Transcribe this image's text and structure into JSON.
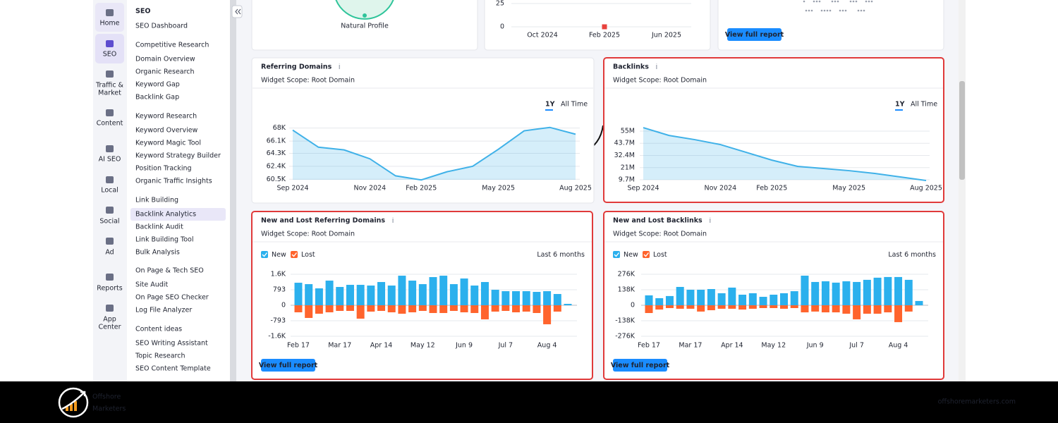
{
  "rail": [
    {
      "label": [
        "Home"
      ]
    },
    {
      "label": [
        "SEO"
      ]
    },
    {
      "label": [
        "Traffic &",
        "Market"
      ]
    },
    {
      "label": [
        "Content"
      ]
    },
    {
      "label": [
        "AI SEO"
      ]
    },
    {
      "label": [
        "Local"
      ]
    },
    {
      "label": [
        "Social"
      ]
    },
    {
      "label": [
        "Ad"
      ]
    },
    {
      "label": [
        "Reports"
      ]
    },
    {
      "label": [
        "App",
        "Center"
      ]
    }
  ],
  "sidebar": {
    "title": "SEO",
    "dashboard": "SEO Dashboard",
    "sections": [
      {
        "heading": "Competitive Research",
        "items": [
          "Domain Overview",
          "Organic Research",
          "Keyword Gap",
          "Backlink Gap"
        ]
      },
      {
        "heading": "Keyword Research",
        "items": [
          "Keyword Overview",
          "Keyword Magic Tool",
          "Keyword Strategy Builder",
          "Position Tracking",
          "Organic Traffic Insights"
        ]
      },
      {
        "heading": "Link Building",
        "items": [
          "Backlink Analytics",
          "Backlink Audit",
          "Link Building Tool",
          "Bulk Analysis"
        ]
      },
      {
        "heading": "On Page & Tech SEO",
        "items": [
          "Site Audit",
          "On Page SEO Checker",
          "Log File Analyzer"
        ]
      },
      {
        "heading": "Content ideas",
        "items": [
          "SEO Writing Assistant",
          "Topic Research",
          "SEO Content Template"
        ]
      }
    ]
  },
  "top_cards": {
    "natural_profile": "Natural Profile",
    "button": "View full report"
  },
  "annotation": "Backlinks",
  "chart_data": [
    {
      "type": "marker",
      "categories": [
        "Oct 2024",
        "Feb 2025",
        "Jun 2025"
      ],
      "values": [
        null,
        0,
        null
      ],
      "color": "#e8413c",
      "ylim": [
        0,
        25
      ],
      "yticks": [
        25,
        0
      ],
      "grid": true
    },
    {
      "type": "line",
      "title": "Referring Domains",
      "subtitle": "Widget Scope: Root Domain",
      "tabs": [
        "1Y",
        "All Time"
      ],
      "categories": [
        "Sep 2024",
        null,
        null,
        "Nov 2024",
        null,
        "Feb 2025",
        null,
        null,
        "May 2025",
        null,
        null,
        "Aug 2025"
      ],
      "values": [
        67700,
        65200,
        64800,
        63500,
        61000,
        60400,
        61600,
        62400,
        64900,
        67600,
        68100,
        67100
      ],
      "color": "#3fb1e8",
      "area": true,
      "ylim": [
        59700,
        69000
      ],
      "yticks": [
        {
          "value": 68000,
          "label": "68K"
        },
        {
          "value": 66100,
          "label": "66.1K"
        },
        {
          "value": 64300,
          "label": "64.3K"
        },
        {
          "value": 62400,
          "label": "62.4K"
        },
        {
          "value": 60500,
          "label": "60.5K"
        }
      ],
      "grid": true
    },
    {
      "type": "line",
      "title": "Backlinks",
      "subtitle": "Widget Scope: Root Domain",
      "tabs": [
        "1Y",
        "All Time"
      ],
      "categories": [
        "Sep 2024",
        null,
        null,
        "Nov 2024",
        null,
        "Feb 2025",
        null,
        null,
        "May 2025",
        null,
        null,
        "Aug 2025"
      ],
      "values": [
        58300000,
        51000000,
        47100000,
        42500000,
        35300000,
        28000000,
        22200000,
        20200000,
        18200000,
        15600000,
        12300000,
        9000000
      ],
      "color": "#3fb1e8",
      "area": true,
      "ylim": [
        5100000,
        61600000
      ],
      "yticks": [
        {
          "value": 55000000,
          "label": "55M"
        },
        {
          "value": 43700000,
          "label": "43.7M"
        },
        {
          "value": 32400000,
          "label": "32.4M"
        },
        {
          "value": 21000000,
          "label": "21M"
        },
        {
          "value": 9700000,
          "label": "9.7M"
        }
      ],
      "grid": true
    },
    {
      "type": "bar",
      "title": "New and Lost Referring Domains",
      "subtitle": "Widget Scope: Root Domain",
      "period": "Last 6 months",
      "button": "View full report",
      "categories": [
        "Feb 17",
        null,
        null,
        null,
        "Mar 17",
        null,
        null,
        null,
        "Apr 14",
        null,
        null,
        null,
        "May 12",
        null,
        null,
        null,
        "Jun 9",
        null,
        null,
        null,
        "Jul 7",
        null,
        null,
        null,
        "Aug 4",
        null,
        null
      ],
      "series": [
        {
          "name": "New",
          "color": "#2bb0ed",
          "values": [
            1152,
            1080,
            864,
            1260,
            936,
            1044,
            1044,
            1008,
            1188,
            1008,
            1512,
            1260,
            1080,
            1440,
            1512,
            1080,
            1368,
            1008,
            1188,
            792,
            720,
            720,
            720,
            684,
            720,
            576,
            72
          ]
        },
        {
          "name": "Lost",
          "color": "#ff642d",
          "values": [
            -360,
            -648,
            -432,
            -360,
            -288,
            -288,
            -684,
            -324,
            -288,
            -360,
            -432,
            -360,
            -288,
            -396,
            -396,
            -288,
            -360,
            -396,
            -720,
            -324,
            -288,
            -360,
            -324,
            -396,
            -972,
            -324,
            0
          ]
        }
      ],
      "ylim": [
        -1910,
        1910
      ],
      "yticks": [
        {
          "value": 1586,
          "label": "1.6K"
        },
        793,
        0,
        -793,
        {
          "value": -1586,
          "label": "-1.6K"
        }
      ],
      "grid": true
    },
    {
      "type": "bar",
      "title": "New and Lost Backlinks",
      "subtitle": "Widget Scope: Root Domain",
      "period": "Last 6 months",
      "button": "View full report",
      "categories": [
        "Feb 17",
        null,
        null,
        null,
        "Mar 17",
        null,
        null,
        null,
        "Apr 14",
        null,
        null,
        null,
        "May 12",
        null,
        null,
        null,
        "Jun 9",
        null,
        null,
        null,
        "Jul 7",
        null,
        null,
        null,
        "Aug 4",
        null,
        null
      ],
      "series": [
        {
          "name": "New",
          "color": "#2bb0ed",
          "values": [
            88000,
            63000,
            82000,
            163000,
            138000,
            138000,
            144000,
            107000,
            157000,
            94000,
            107000,
            75000,
            94000,
            107000,
            125000,
            263000,
            207000,
            213000,
            201000,
            213000,
            207000,
            226000,
            245000,
            251000,
            251000,
            226000,
            38000
          ]
        },
        {
          "name": "Lost",
          "color": "#ff642d",
          "values": [
            -69000,
            -38000,
            -25000,
            -31000,
            -31000,
            -56000,
            -44000,
            -31000,
            -31000,
            -38000,
            -31000,
            -25000,
            -25000,
            -31000,
            -25000,
            -63000,
            -56000,
            -63000,
            -63000,
            -75000,
            -125000,
            -75000,
            -75000,
            -63000,
            -150000,
            -56000,
            0
          ]
        }
      ],
      "ylim": [
        -332000,
        332000
      ],
      "yticks": [
        {
          "value": 276000,
          "label": "276K"
        },
        {
          "value": 138000,
          "label": "138K"
        },
        0,
        {
          "value": -138000,
          "label": "-138K"
        },
        {
          "value": -276000,
          "label": "-276K"
        }
      ],
      "grid": true
    }
  ],
  "footer": {
    "brand": [
      "Offshore",
      "Marketers"
    ],
    "url": "offshoremarketers.com"
  }
}
